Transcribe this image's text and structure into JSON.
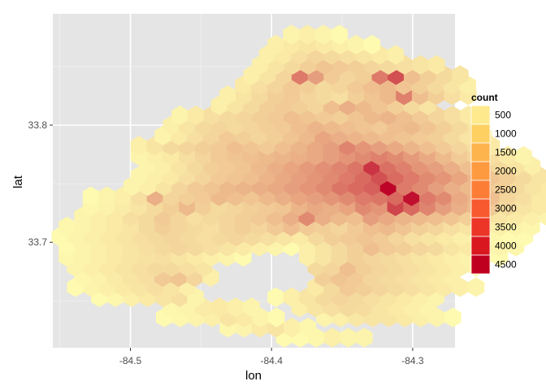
{
  "chart_data": {
    "type": "heatmap",
    "subtype": "hexbin",
    "title": "",
    "xlabel": "lon",
    "ylabel": "lat",
    "xlim": [
      -84.555,
      -84.27
    ],
    "ylim": [
      33.61,
      33.895
    ],
    "x_ticks": [
      -84.5,
      -84.4,
      -84.3
    ],
    "x_tick_labels": [
      "-84.5",
      "-84.4",
      "-84.3"
    ],
    "y_ticks": [
      33.7,
      33.8
    ],
    "y_tick_labels": [
      "33.7",
      "33.8"
    ],
    "grid": true,
    "legend": {
      "title": "count",
      "placement": "right",
      "breaks": [
        500,
        1000,
        1500,
        2000,
        2500,
        3000,
        3500,
        4000,
        4500
      ],
      "labels": [
        "500",
        "1000",
        "1500",
        "2000",
        "2500",
        "3000",
        "3500",
        "4000",
        "4500"
      ],
      "colors": [
        "#fee98d",
        "#fed062",
        "#fdb44d",
        "#fd9a40",
        "#fc7d36",
        "#f8592e",
        "#ec3526",
        "#d9171f",
        "#c0001f"
      ]
    },
    "color_scale": {
      "low_count": 0,
      "high_count": 4800,
      "low_color": "#ffffb2",
      "high_color": "#bd0026"
    },
    "hex_grid": {
      "row_origin_lat": 33.61,
      "row_step_lat": 0.00862,
      "col_step_lon": 0.01136,
      "odd_row_lon_shift": 0.00568,
      "hex_width_lon": 0.01136,
      "rows": [
        {
          "row": 1,
          "lon_start": -84.391,
          "counts": [
            100,
            100,
            150,
            300,
            200,
            200
          ]
        },
        {
          "row": 2,
          "lon_start": -84.431,
          "counts": [
            150,
            200,
            400,
            500,
            300,
            150
          ]
        },
        {
          "row": 3,
          "lon_start": -84.476,
          "counts": [
            100,
            150,
            200,
            300,
            500,
            400,
            200,
            100,
            0,
            0,
            200,
            300,
            450,
            500,
            500,
            400,
            300,
            200,
            100
          ]
        },
        {
          "row": 4,
          "lon_start": -84.471,
          "counts": [
            150,
            200,
            350,
            400,
            300,
            200,
            0,
            0,
            300,
            500,
            600,
            700,
            650,
            500,
            400,
            300,
            200
          ]
        },
        {
          "row": 5,
          "lon_start": -84.522,
          "counts": [
            100,
            150,
            300,
            400,
            500,
            600,
            200,
            0,
            0,
            0,
            0,
            100,
            300,
            500,
            700,
            800,
            700,
            600,
            500,
            400,
            300,
            200
          ]
        },
        {
          "row": 6,
          "lon_start": -84.539,
          "counts": [
            100,
            200,
            300,
            400,
            500,
            600,
            500,
            300,
            0,
            0,
            0,
            0,
            0,
            0,
            0,
            400,
            700,
            1000,
            900,
            800,
            700,
            600,
            500,
            400,
            300,
            200
          ]
        },
        {
          "row": 7,
          "lon_start": -84.534,
          "counts": [
            150,
            250,
            350,
            500,
            600,
            1000,
            1100,
            800,
            300,
            0,
            0,
            0,
            0,
            0,
            0,
            900,
            1100,
            1000,
            800,
            700,
            600,
            500,
            400,
            300
          ]
        },
        {
          "row": 8,
          "lon_start": -84.539,
          "counts": [
            200,
            300,
            400,
            500,
            600,
            700,
            700,
            600,
            500,
            0,
            0,
            0,
            0,
            0,
            0,
            700,
            800,
            1200,
            900,
            800,
            700,
            600,
            500,
            400,
            300,
            200
          ]
        },
        {
          "row": 9,
          "lon_start": -84.545,
          "counts": [
            150,
            200,
            300,
            400,
            500,
            550,
            600,
            500,
            400,
            300,
            200,
            100,
            0,
            0,
            0,
            300,
            500,
            700,
            900,
            800,
            700,
            600,
            500,
            400,
            300,
            200,
            150,
            100
          ]
        },
        {
          "row": 10,
          "lon_start": -84.545,
          "counts": [
            100,
            200,
            300,
            400,
            500,
            600,
            700,
            800,
            700,
            600,
            500,
            400,
            300,
            200,
            100,
            300,
            500,
            700,
            900,
            1200,
            1000,
            900,
            800,
            700,
            500,
            400,
            300,
            200,
            150
          ]
        },
        {
          "row": 11,
          "lon_start": -84.55,
          "counts": [
            100,
            200,
            300,
            400,
            500,
            600,
            700,
            800,
            700,
            600,
            700,
            800,
            700,
            600,
            500,
            400,
            700,
            900,
            1000,
            1100,
            1000,
            800,
            600,
            500,
            400,
            300,
            200,
            150,
            100,
            100
          ]
        },
        {
          "row": 12,
          "lon_start": -84.545,
          "counts": [
            150,
            200,
            300,
            400,
            500,
            700,
            900,
            800,
            700,
            600,
            800,
            900,
            800,
            1000,
            1200,
            1000,
            900,
            800,
            1000,
            1200,
            1300,
            1100,
            900,
            800,
            600,
            500,
            400,
            300,
            200,
            150
          ]
        },
        {
          "row": 13,
          "lon_start": -84.534,
          "counts": [
            200,
            300,
            400,
            600,
            700,
            1000,
            800,
            600,
            700,
            800,
            900,
            1000,
            1200,
            1500,
            2200,
            1500,
            1300,
            1200,
            1800,
            1600,
            1400,
            1300,
            1200,
            1100,
            900,
            700,
            500,
            400,
            300,
            200,
            150,
            150,
            150
          ]
        },
        {
          "row": 14,
          "lon_start": -84.528,
          "counts": [
            150,
            250,
            350,
            500,
            700,
            900,
            1300,
            900,
            700,
            800,
            900,
            1000,
            1100,
            1400,
            1600,
            1500,
            1700,
            2200,
            2000,
            3500,
            2800,
            2300,
            1800,
            1500,
            1300,
            1000,
            700,
            500,
            400,
            300,
            200,
            150,
            150
          ]
        },
        {
          "row": 15,
          "lon_start": -84.528,
          "counts": [
            100,
            200,
            300,
            600,
            1500,
            800,
            900,
            1000,
            1300,
            1200,
            1100,
            1300,
            1500,
            1700,
            1800,
            2000,
            2200,
            2500,
            2600,
            2800,
            4500,
            2500,
            2200,
            1600,
            1400,
            1200,
            800,
            600,
            400,
            300,
            200,
            100
          ]
        },
        {
          "row": 16,
          "lon_start": -84.499,
          "counts": [
            200,
            300,
            500,
            800,
            1000,
            1100,
            1300,
            1400,
            1500,
            1600,
            1800,
            2000,
            2200,
            2600,
            2800,
            3000,
            4700,
            2500,
            2200,
            1800,
            1500,
            1300,
            1100,
            900,
            700,
            500,
            400,
            300
          ]
        },
        {
          "row": 17,
          "lon_start": -84.494,
          "counts": [
            200,
            300,
            400,
            600,
            800,
            1000,
            1100,
            1200,
            1400,
            1600,
            1800,
            2000,
            2200,
            2500,
            2800,
            3300,
            2800,
            2500,
            2200,
            2000,
            1700,
            1400,
            1100,
            900,
            700,
            500
          ]
        },
        {
          "row": 18,
          "lon_start": -84.488,
          "counts": [
            200,
            300,
            500,
            700,
            900,
            1000,
            1100,
            1300,
            1500,
            1700,
            1900,
            2100,
            2300,
            2600,
            3800,
            2700,
            2400,
            2000,
            1800,
            1500,
            1200,
            900,
            700,
            500,
            300
          ]
        },
        {
          "row": 19,
          "lon_start": -84.494,
          "counts": [
            200,
            300,
            400,
            600,
            800,
            1000,
            1100,
            1200,
            1300,
            1400,
            1500,
            1600,
            1800,
            2000,
            2200,
            2400,
            2200,
            1900,
            1600,
            1300,
            1000,
            800,
            600,
            400,
            200
          ]
        },
        {
          "row": 20,
          "lon_start": -84.494,
          "counts": [
            300,
            500,
            700,
            800,
            900,
            1000,
            1200,
            1100,
            1000,
            1200,
            1400,
            1600,
            1800,
            2300,
            2000,
            1800,
            1600,
            1400,
            1200,
            1000,
            800,
            600,
            400
          ]
        },
        {
          "row": 21,
          "lon_start": -84.477,
          "counts": [
            200,
            400,
            600,
            800,
            1000,
            900,
            800,
            900,
            1100,
            1300,
            1700,
            1500,
            1400,
            1300,
            1200,
            1100,
            1000,
            900,
            700,
            500,
            300
          ]
        },
        {
          "row": 22,
          "lon_start": -84.471,
          "counts": [
            300,
            500,
            700,
            800,
            700,
            800,
            900,
            1000,
            1200,
            1400,
            1300,
            1200,
            1100,
            1000,
            1200,
            1300,
            1100,
            900,
            700,
            500
          ]
        },
        {
          "row": 23,
          "lon_start": -84.465,
          "counts": [
            200,
            400,
            600,
            700,
            800,
            900,
            1000,
            1200,
            1100,
            1000,
            900,
            1100,
            1300,
            1400,
            1200,
            1000,
            800,
            600,
            400
          ]
        },
        {
          "row": 24,
          "lon_start": -84.437,
          "counts": [
            300,
            500,
            700,
            900,
            1000,
            900,
            800,
            1200,
            1500,
            1300,
            1100,
            900,
            700,
            500
          ]
        },
        {
          "row": 25,
          "lon_start": -84.431,
          "counts": [
            300,
            500,
            700,
            900,
            1000,
            800,
            700,
            600,
            900,
            1100,
            1300,
            2400,
            1200,
            900,
            600,
            400
          ]
        },
        {
          "row": 26,
          "lon_start": -84.42,
          "counts": [
            400,
            600,
            800,
            1000,
            900,
            700,
            800,
            1000,
            1200,
            1300,
            1100,
            900,
            700,
            500,
            300
          ]
        },
        {
          "row": 27,
          "lon_start": -84.414,
          "counts": [
            300,
            500,
            800,
            2500,
            1800,
            1000,
            800,
            900,
            2500,
            3300,
            1200,
            900,
            700,
            500
          ]
        },
        {
          "row": 28,
          "lon_start": -84.408,
          "counts": [
            300,
            500,
            700,
            900,
            1100,
            1000,
            900,
            800,
            700,
            600,
            500,
            400
          ]
        },
        {
          "row": 29,
          "lon_start": -84.403,
          "counts": [
            300,
            400,
            600,
            800,
            700,
            600,
            500,
            400,
            300
          ]
        },
        {
          "row": 30,
          "lon_start": -84.397,
          "counts": [
            300,
            400,
            500,
            400,
            300,
            200,
            100
          ]
        },
        {
          "row": 31,
          "lon_start": -84.386,
          "counts": [
            200,
            300,
            200,
            100
          ]
        }
      ]
    }
  }
}
